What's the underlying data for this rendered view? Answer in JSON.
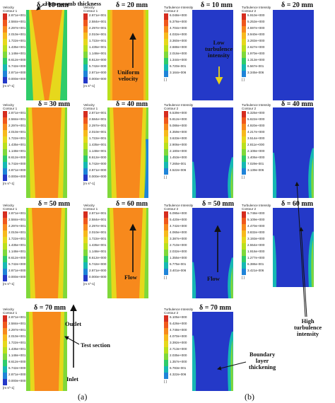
{
  "velocity": {
    "legend_title": [
      "Velocity",
      "Contour 1"
    ],
    "ticks": [
      "2.871e+001",
      "2.584e+001",
      "2.297e+001",
      "2.010e+001",
      "1.722e+001",
      "1.435e+001",
      "1.148e+001",
      "8.612e+000",
      "5.742e+000",
      "2.871e+000",
      "0.000e+000"
    ],
    "unit": "[m s^-1]",
    "unit_short": "[m s^-1]",
    "palette": [
      "#d62d1f",
      "#f0581c",
      "#f7891c",
      "#f7b91c",
      "#e6d81c",
      "#b9e01c",
      "#7fd83a",
      "#2fcc6a",
      "#16b8b3",
      "#1f84d8",
      "#2439c8"
    ],
    "panels": [
      {
        "label": "δ = 10 mm"
      },
      {
        "label": "δ = 20 mm"
      },
      {
        "label": "δ = 30 mm"
      },
      {
        "label": "δ = 40 mm"
      },
      {
        "label": "δ = 50 mm"
      },
      {
        "label": "δ = 60 mm"
      },
      {
        "label": "δ = 70 mm"
      }
    ],
    "panel_ticks": {
      "p1": [
        "2.871e+001",
        "2.584e+001",
        "2.297e+001",
        "2.010e+001",
        "1.722e+001",
        "1.435e+001",
        "1.148e+001",
        "8.612e+000",
        "5.742e+000",
        "2.871e+000",
        "0.000e+000"
      ],
      "p3": [
        "2.871e+001",
        "2.297e+001",
        "2.010e+001",
        "1.435e+001",
        "1.148e+001",
        "5.742e+000",
        "2.871e+000",
        "0.000e+000"
      ],
      "p5": [
        "2.871e+001",
        "2.584e+001",
        "2.297e+001",
        "2.010e+001",
        "1.722e+001",
        "1.435e+001",
        "1.148e+001",
        "8.612e+000",
        "5.742e+000",
        "2.871e+000",
        "0.000e+000"
      ]
    }
  },
  "turbulence": {
    "legend_title": [
      "Turbulence Intensity",
      "Contour 2"
    ],
    "palette": [
      "#d62d1f",
      "#f0581c",
      "#f7891c",
      "#f7b91c",
      "#e6d81c",
      "#b9e01c",
      "#7fd83a",
      "#2fcc6a",
      "#16b8b3",
      "#1f84d8",
      "#2439c8"
    ],
    "unit": "[ ]",
    "panels": [
      {
        "label": "δ = 10 mm",
        "ticks": [
          "6.048e+000",
          "5.376e+000",
          "4.704e+000",
          "4.032e+000",
          "3.360e+000",
          "2.688e+000",
          "2.016e+000",
          "1.344e+000",
          "6.720e-001",
          "3.164e-006"
        ]
      },
      {
        "label": "δ = 20 mm",
        "ticks": [
          "5.910e+000",
          "5.253e+000",
          "4.597e+000",
          "3.940e+000",
          "3.283e+000",
          "2.627e+000",
          "1.970e+000",
          "1.313e+000",
          "6.567e-001",
          "3.345e-006"
        ]
      },
      {
        "label": "",
        "ticks": [
          "6.539e+000",
          "5.812e+000",
          "5.086e+000",
          "4.359e+000",
          "3.633e+000",
          "2.906e+000",
          "2.180e+000",
          "1.453e+000",
          "7.265e-001",
          "4.522e-006"
        ]
      },
      {
        "label": "δ = 40 mm",
        "ticks": [
          "6.325e+000",
          "5.622e+000",
          "4.920e+000",
          "4.217e+000",
          "3.514e+000",
          "2.811e+000",
          "2.108e+000",
          "1.406e+000",
          "7.029e-001",
          "3.139e-006"
        ]
      },
      {
        "label": "δ = 50 mm",
        "ticks": [
          "6.095e+000",
          "5.420e+000",
          "4.742e+000",
          "4.065e+000",
          "3.387e+000",
          "2.710e+000",
          "2.032e+000",
          "1.355e+000",
          "6.775e-001",
          "3.401e-006"
        ]
      },
      {
        "label": "δ = 60 mm",
        "ticks": [
          "5.748e+000",
          "5.109e+000",
          "4.470e+000",
          "3.832e+000",
          "3.193e+000",
          "2.554e+000",
          "1.916e+000",
          "1.277e+000",
          "6.386e-001",
          "3.421e-006"
        ]
      },
      {
        "label": "δ = 70 mm",
        "ticks": [
          "6.105e+000",
          "5.426e+000",
          "4.748e+000",
          "4.070e+000",
          "3.392e+000",
          "2.713e+000",
          "2.035e+000",
          "1.357e+000",
          "6.783e-001",
          "4.322e-006"
        ]
      }
    ]
  },
  "annotations": {
    "honeycomb": "Honeycomb thickness",
    "uniform_velocity": [
      "Uniform",
      "velocity"
    ],
    "flow": "Flow",
    "outlet": "Outlet",
    "inlet": "Inlet",
    "test_section": "Test section",
    "low_turbulence": [
      "Low",
      "turbulence",
      "intensity"
    ],
    "high_turbulence": [
      "High",
      "turbulence",
      "intensity"
    ],
    "boundary_layer": [
      "Boundary",
      "layer",
      "thickening"
    ],
    "flow_right": "Flow"
  },
  "captions": {
    "a": "(a)",
    "b": "(b)"
  }
}
